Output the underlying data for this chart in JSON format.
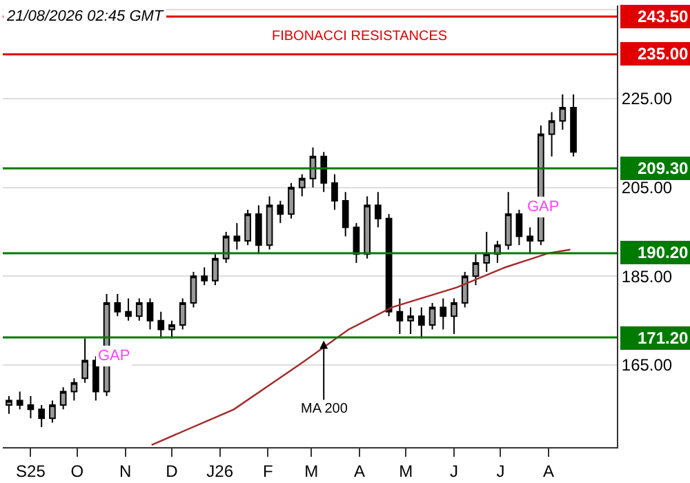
{
  "chart_data": {
    "type": "candlestick",
    "x": [
      "2025-08-18",
      "2025-08-25",
      "2025-09-01",
      "2025-09-08",
      "2025-09-15",
      "2025-09-22",
      "2025-09-29",
      "2025-10-06",
      "2025-10-13",
      "2025-10-20",
      "2025-10-27",
      "2025-11-03",
      "2025-11-10",
      "2025-11-17",
      "2025-11-24",
      "2025-12-01",
      "2025-12-08",
      "2025-12-15",
      "2025-12-22",
      "2025-12-29",
      "2026-01-05",
      "2026-01-12",
      "2026-01-19",
      "2026-01-26",
      "2026-02-02",
      "2026-02-09",
      "2026-02-16",
      "2026-02-23",
      "2026-03-02",
      "2026-03-09",
      "2026-03-16",
      "2026-03-23",
      "2026-03-30",
      "2026-04-06",
      "2026-04-13",
      "2026-04-20",
      "2026-04-27",
      "2026-05-04",
      "2026-05-11",
      "2026-05-18",
      "2026-05-25",
      "2026-06-01",
      "2026-06-08",
      "2026-06-15",
      "2026-06-22",
      "2026-06-29",
      "2026-07-06",
      "2026-07-13",
      "2026-07-20",
      "2026-07-27",
      "2026-08-03",
      "2026-08-10",
      "2026-08-17"
    ],
    "ohlc": [
      [
        156,
        158,
        154,
        157
      ],
      [
        157,
        159,
        155,
        156
      ],
      [
        156,
        158,
        153,
        155
      ],
      [
        155,
        156,
        151,
        153
      ],
      [
        153,
        157,
        152,
        156
      ],
      [
        156,
        160,
        155,
        159
      ],
      [
        159,
        162,
        157,
        161
      ],
      [
        162,
        171,
        161,
        166
      ],
      [
        166,
        167,
        157,
        159
      ],
      [
        159,
        181,
        158,
        179
      ],
      [
        179,
        181,
        176,
        177
      ],
      [
        177,
        180,
        175,
        176
      ],
      [
        176,
        180,
        175,
        179
      ],
      [
        179,
        180,
        173,
        175
      ],
      [
        175,
        177,
        171,
        173
      ],
      [
        173,
        175,
        171,
        174
      ],
      [
        174,
        180,
        173,
        179
      ],
      [
        179,
        186,
        178,
        185
      ],
      [
        185,
        187,
        183,
        184
      ],
      [
        184,
        190,
        183,
        189
      ],
      [
        189,
        195,
        188,
        194
      ],
      [
        194,
        197,
        191,
        193
      ],
      [
        193,
        200,
        192,
        199
      ],
      [
        199,
        201,
        190,
        192
      ],
      [
        192,
        203,
        191,
        201
      ],
      [
        201,
        202,
        197,
        199
      ],
      [
        199,
        206,
        198,
        205
      ],
      [
        205,
        208,
        203,
        207
      ],
      [
        207,
        214,
        205,
        212
      ],
      [
        212,
        213,
        204,
        206
      ],
      [
        206,
        208,
        200,
        202
      ],
      [
        202,
        204,
        194,
        196
      ],
      [
        196,
        197,
        188,
        190
      ],
      [
        190,
        203,
        189,
        201
      ],
      [
        201,
        204,
        196,
        198
      ],
      [
        198,
        199,
        176,
        177
      ],
      [
        177,
        180,
        172,
        175
      ],
      [
        175,
        178,
        172,
        176
      ],
      [
        176,
        178,
        171,
        174
      ],
      [
        174,
        179,
        173,
        178
      ],
      [
        178,
        180,
        173,
        176
      ],
      [
        176,
        180,
        172,
        179
      ],
      [
        179,
        186,
        178,
        185
      ],
      [
        185,
        190,
        183,
        188
      ],
      [
        188,
        195,
        186,
        190
      ],
      [
        190,
        193,
        188,
        192
      ],
      [
        192,
        204,
        191,
        199
      ],
      [
        199,
        200,
        192,
        194
      ],
      [
        194,
        196,
        190,
        193
      ],
      [
        193,
        219,
        192,
        217
      ],
      [
        217,
        222,
        212,
        220
      ],
      [
        220,
        226,
        218,
        223
      ],
      [
        223,
        226,
        212,
        213
      ]
    ],
    "color": "#000000",
    "series": [
      {
        "type": "line",
        "color": "#a52a2a",
        "x": [
          "2025-11-18",
          "2026-01-10",
          "2026-02-23",
          "2026-03-25",
          "2026-04-22",
          "2026-06-03",
          "2026-07-04",
          "2026-08-01",
          "2026-08-15"
        ],
        "values": [
          147,
          155,
          165.5,
          173,
          178,
          182.5,
          187,
          190.2,
          191
        ]
      }
    ],
    "xlim": [
      "2025-08-14",
      "2026-09-14"
    ],
    "ylim": [
      146.5,
      246
    ],
    "xticks": [
      {
        "value": "2025-09-01",
        "label": "S25"
      },
      {
        "value": "2025-10-01",
        "label": "O"
      },
      {
        "value": "2025-11-01",
        "label": "N"
      },
      {
        "value": "2025-12-01",
        "label": "D"
      },
      {
        "value": "2026-01-01",
        "label": "J26"
      },
      {
        "value": "2026-02-01",
        "label": "F"
      },
      {
        "value": "2026-03-01",
        "label": "M"
      },
      {
        "value": "2026-04-01",
        "label": "A"
      },
      {
        "value": "2026-05-01",
        "label": "M"
      },
      {
        "value": "2026-06-01",
        "label": "J"
      },
      {
        "value": "2026-07-01",
        "label": "J"
      },
      {
        "value": "2026-08-01",
        "label": "A"
      }
    ],
    "yticks": [
      {
        "value": 165,
        "label": "165.00"
      },
      {
        "value": 185,
        "label": "185.00"
      },
      {
        "value": 205,
        "label": "205.00"
      },
      {
        "value": 225,
        "label": "225.00"
      },
      {
        "value": 245,
        "label": null
      }
    ],
    "grid": "y",
    "ref_lines": [
      {
        "axis": "y",
        "value": 243.5,
        "label": "243.50",
        "color": "#e00000"
      },
      {
        "axis": "y",
        "value": 235,
        "label": "235.00",
        "color": "#e00000"
      },
      {
        "axis": "y",
        "value": 209.3,
        "label": "209.30",
        "color": "#007a00"
      },
      {
        "axis": "y",
        "value": 190.2,
        "label": "190.20",
        "color": "#007a00"
      },
      {
        "axis": "y",
        "value": 171.2,
        "label": "171.20",
        "color": "#007a00"
      }
    ],
    "annotations": [
      "21/08/2026 02:45 GMT",
      "FIBONACCI RESISTANCES",
      "GAP",
      {
        "text": "GAP",
        "x": "2026-07-28",
        "y": 200.6
      },
      {
        "text": "MA 200",
        "x": "2026-03-09",
        "y": 170.5
      }
    ]
  }
}
